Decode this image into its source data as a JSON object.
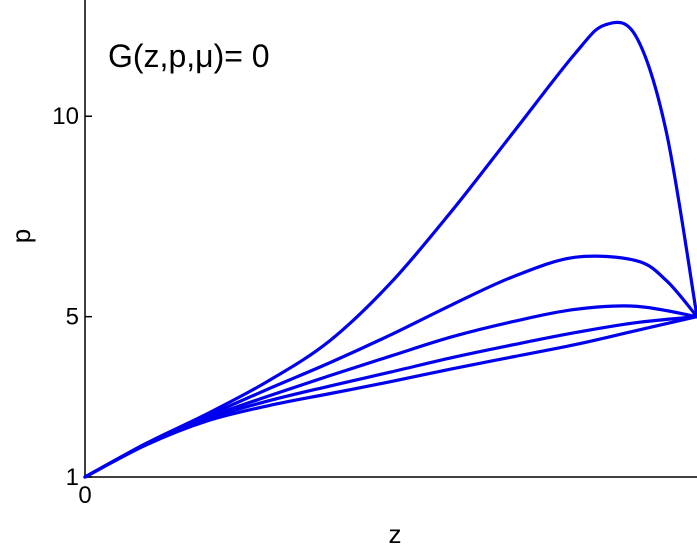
{
  "chart_data": {
    "type": "line",
    "title": "",
    "annotation": "G(z,p,μ)= 0",
    "xlabel": "z",
    "ylabel": "p",
    "xlim": [
      0,
      1
    ],
    "ylim": [
      1,
      12.9
    ],
    "x_ticks": [
      {
        "value": 0,
        "label": "0"
      }
    ],
    "y_ticks": [
      {
        "value": 1,
        "label": "1"
      },
      {
        "value": 5,
        "label": "5"
      },
      {
        "value": 10,
        "label": "10"
      }
    ],
    "grid": false,
    "line_color": "#0000ee",
    "series": [
      {
        "x": [
          0,
          0.1,
          0.2,
          0.3,
          0.4,
          0.5,
          0.6,
          0.7,
          0.8,
          0.85,
          0.9,
          0.95,
          1.0
        ],
        "values": [
          1,
          1.84,
          2.58,
          3.4,
          4.4,
          5.85,
          7.65,
          9.6,
          11.55,
          12.28,
          12.0,
          9.6,
          5.0
        ]
      },
      {
        "x": [
          0,
          0.1,
          0.2,
          0.3,
          0.4,
          0.5,
          0.6,
          0.7,
          0.8,
          0.9,
          0.95,
          1.0
        ],
        "values": [
          1,
          1.83,
          2.53,
          3.2,
          3.85,
          4.55,
          5.3,
          6.0,
          6.48,
          6.4,
          5.9,
          5.0
        ]
      },
      {
        "x": [
          0,
          0.1,
          0.2,
          0.3,
          0.4,
          0.5,
          0.6,
          0.7,
          0.8,
          0.9,
          1.0
        ],
        "values": [
          1,
          1.82,
          2.48,
          3.02,
          3.53,
          4.02,
          4.5,
          4.88,
          5.18,
          5.26,
          5.0
        ]
      },
      {
        "x": [
          0,
          0.1,
          0.2,
          0.3,
          0.4,
          0.5,
          0.6,
          0.7,
          0.8,
          0.9,
          1.0
        ],
        "values": [
          1,
          1.81,
          2.45,
          2.9,
          3.27,
          3.62,
          3.98,
          4.3,
          4.6,
          4.85,
          5.0
        ]
      },
      {
        "x": [
          0,
          0.1,
          0.2,
          0.3,
          0.4,
          0.5,
          0.6,
          0.7,
          0.8,
          0.9,
          1.0
        ],
        "values": [
          1,
          1.8,
          2.4,
          2.78,
          3.08,
          3.38,
          3.7,
          4.0,
          4.3,
          4.65,
          5.0
        ]
      }
    ]
  }
}
